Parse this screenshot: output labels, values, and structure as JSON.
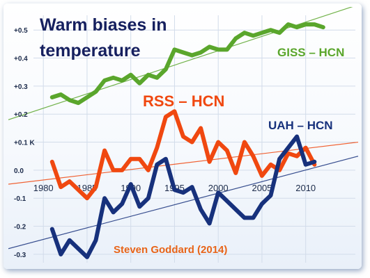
{
  "chart_data": {
    "type": "line",
    "title": "Warm biases in temperature",
    "title_lines": [
      "Warm biases in",
      "temperature"
    ],
    "credit": "Steven Goddard (2014)",
    "ylim": [
      -0.34,
      0.56
    ],
    "xlim": [
      1976,
      2016
    ],
    "y_ticks": [
      {
        "value": 0.5,
        "label": "+0.5"
      },
      {
        "value": 0.4,
        "label": "+0.4"
      },
      {
        "value": 0.3,
        "label": "+0.3"
      },
      {
        "value": 0.2,
        "label": "+0.2"
      },
      {
        "value": 0.1,
        "label": "+0.1 K"
      },
      {
        "value": 0.0,
        "label": "0.0"
      },
      {
        "value": -0.1,
        "label": "-0.1"
      },
      {
        "value": -0.2,
        "label": "-0.2"
      },
      {
        "value": -0.3,
        "label": "-0.3"
      }
    ],
    "x_ticks": [
      1980,
      1985,
      1990,
      1995,
      2000,
      2005,
      2010
    ],
    "grid": true,
    "series": [
      {
        "name": "GISS – HCN",
        "color": "#5aa62c",
        "x": [
          1981,
          1982,
          1983,
          1984,
          1985,
          1986,
          1987,
          1988,
          1989,
          1990,
          1991,
          1992,
          1993,
          1994,
          1995,
          1996,
          1997,
          1998,
          1999,
          2000,
          2001,
          2002,
          2003,
          2004,
          2005,
          2006,
          2007,
          2008,
          2009,
          2010,
          2011,
          2012
        ],
        "values": [
          0.26,
          0.27,
          0.25,
          0.24,
          0.26,
          0.28,
          0.32,
          0.33,
          0.32,
          0.34,
          0.31,
          0.34,
          0.33,
          0.36,
          0.43,
          0.42,
          0.41,
          0.42,
          0.44,
          0.43,
          0.43,
          0.47,
          0.49,
          0.48,
          0.49,
          0.5,
          0.49,
          0.52,
          0.51,
          0.52,
          0.52,
          0.51
        ],
        "trend": [
          [
            1976,
            0.18
          ],
          [
            2016,
            0.59
          ]
        ]
      },
      {
        "name": "RSS – HCN",
        "color": "#f04810",
        "x": [
          1981,
          1982,
          1983,
          1984,
          1985,
          1986,
          1987,
          1988,
          1989,
          1990,
          1991,
          1992,
          1993,
          1994,
          1995,
          1996,
          1997,
          1998,
          1999,
          2000,
          2001,
          2002,
          2003,
          2004,
          2005,
          2006,
          2007,
          2008,
          2009,
          2010,
          2011
        ],
        "values": [
          0.03,
          -0.06,
          -0.04,
          -0.07,
          -0.1,
          -0.06,
          0.07,
          0.0,
          0.0,
          0.04,
          0.04,
          0.0,
          0.08,
          0.19,
          0.21,
          0.12,
          0.1,
          0.15,
          0.03,
          0.1,
          0.07,
          -0.01,
          0.1,
          0.05,
          -0.02,
          0.02,
          0.0,
          0.06,
          0.05,
          0.08,
          0.02
        ],
        "trend": [
          [
            1976,
            -0.05
          ],
          [
            2016,
            0.1
          ]
        ]
      },
      {
        "name": "UAH – HCN",
        "color": "#17317c",
        "x": [
          1981,
          1982,
          1983,
          1984,
          1985,
          1986,
          1987,
          1988,
          1989,
          1990,
          1991,
          1992,
          1993,
          1994,
          1995,
          1996,
          1997,
          1998,
          1999,
          2000,
          2001,
          2002,
          2003,
          2004,
          2005,
          2006,
          2007,
          2008,
          2009,
          2010,
          2011
        ],
        "values": [
          -0.21,
          -0.3,
          -0.25,
          -0.28,
          -0.31,
          -0.25,
          -0.1,
          -0.15,
          -0.12,
          -0.05,
          -0.13,
          -0.1,
          0.02,
          0.04,
          -0.07,
          -0.08,
          -0.06,
          -0.14,
          -0.19,
          -0.08,
          -0.11,
          -0.14,
          -0.17,
          -0.17,
          -0.12,
          -0.09,
          0.04,
          0.08,
          0.12,
          0.02,
          0.03
        ],
        "trend": [
          [
            1976,
            -0.28
          ],
          [
            2016,
            0.05
          ]
        ]
      }
    ]
  }
}
